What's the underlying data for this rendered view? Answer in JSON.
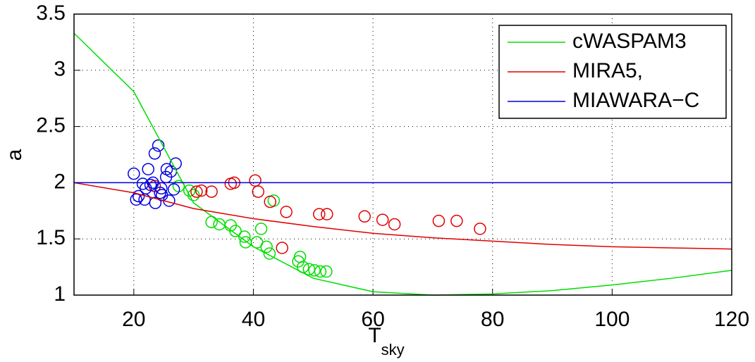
{
  "chart_data": {
    "type": "line",
    "xlabel": "T",
    "xlabel_sub": "sky",
    "ylabel": "a",
    "xlim": [
      10,
      120
    ],
    "xticks": [
      20,
      40,
      60,
      80,
      100,
      120
    ],
    "ylim": [
      1,
      3.5
    ],
    "yticks": [
      1,
      1.5,
      2,
      2.5,
      3,
      3.5
    ],
    "grid": true,
    "legend": "top-right",
    "series": [
      {
        "name": "cWASPAM3",
        "color": "#00dd00",
        "x": [
          10,
          20,
          30,
          40,
          50,
          60,
          70,
          80,
          90,
          100,
          110,
          120
        ],
        "values": [
          3.33,
          2.81,
          1.82,
          1.43,
          1.15,
          1.03,
          1.0,
          1.01,
          1.04,
          1.09,
          1.15,
          1.22
        ]
      },
      {
        "name": "MIRA5,",
        "color": "#e00000",
        "x": [
          10,
          20,
          30,
          40,
          50,
          60,
          70,
          80,
          90,
          100,
          110,
          120
        ],
        "values": [
          2.0,
          1.91,
          1.77,
          1.68,
          1.61,
          1.55,
          1.51,
          1.48,
          1.45,
          1.43,
          1.42,
          1.41
        ]
      },
      {
        "name": "MIAWARA−C",
        "color": "#0000dd",
        "x": [
          10,
          120
        ],
        "values": [
          2.0,
          2.0
        ]
      }
    ],
    "points": [
      {
        "color": "#00dd00",
        "x": [
          27.5,
          29.3,
          30,
          33,
          34.3,
          36.2,
          37,
          38.5,
          38.7,
          40.6,
          41.3,
          42.2,
          42.7,
          43.4,
          47.5,
          47.8,
          48.3,
          49.3,
          50.2,
          51.2,
          52.2
        ],
        "values": [
          1.97,
          1.93,
          1.89,
          1.65,
          1.63,
          1.62,
          1.57,
          1.52,
          1.47,
          1.47,
          1.59,
          1.43,
          1.37,
          1.84,
          1.3,
          1.34,
          1.25,
          1.23,
          1.22,
          1.21,
          1.21
        ]
      },
      {
        "color": "#e00000",
        "x": [
          23.5,
          30.5,
          31.3,
          33,
          36.2,
          36.8,
          40.3,
          40.8,
          42.8,
          44.8,
          45.5,
          51,
          52.3,
          58.6,
          61.6,
          63.6,
          71,
          74,
          77.9
        ],
        "values": [
          1.97,
          1.92,
          1.93,
          1.92,
          1.99,
          2.0,
          2.02,
          1.92,
          1.83,
          1.42,
          1.74,
          1.72,
          1.72,
          1.7,
          1.67,
          1.63,
          1.66,
          1.66,
          1.59
        ]
      },
      {
        "color": "#0000dd",
        "x": [
          20,
          20.4,
          20.8,
          21.5,
          21.8,
          22,
          22.4,
          22.8,
          23.2,
          23.5,
          23.6,
          24.1,
          24.4,
          24.6,
          24.7,
          25.4,
          25.5,
          25.9,
          26.2,
          26.7,
          27
        ],
        "values": [
          2.08,
          1.85,
          1.88,
          1.99,
          1.85,
          1.95,
          2.12,
          1.98,
          2.0,
          2.26,
          1.82,
          2.33,
          1.91,
          1.95,
          1.89,
          2.05,
          2.12,
          1.84,
          2.1,
          1.94,
          2.17
        ]
      }
    ]
  }
}
